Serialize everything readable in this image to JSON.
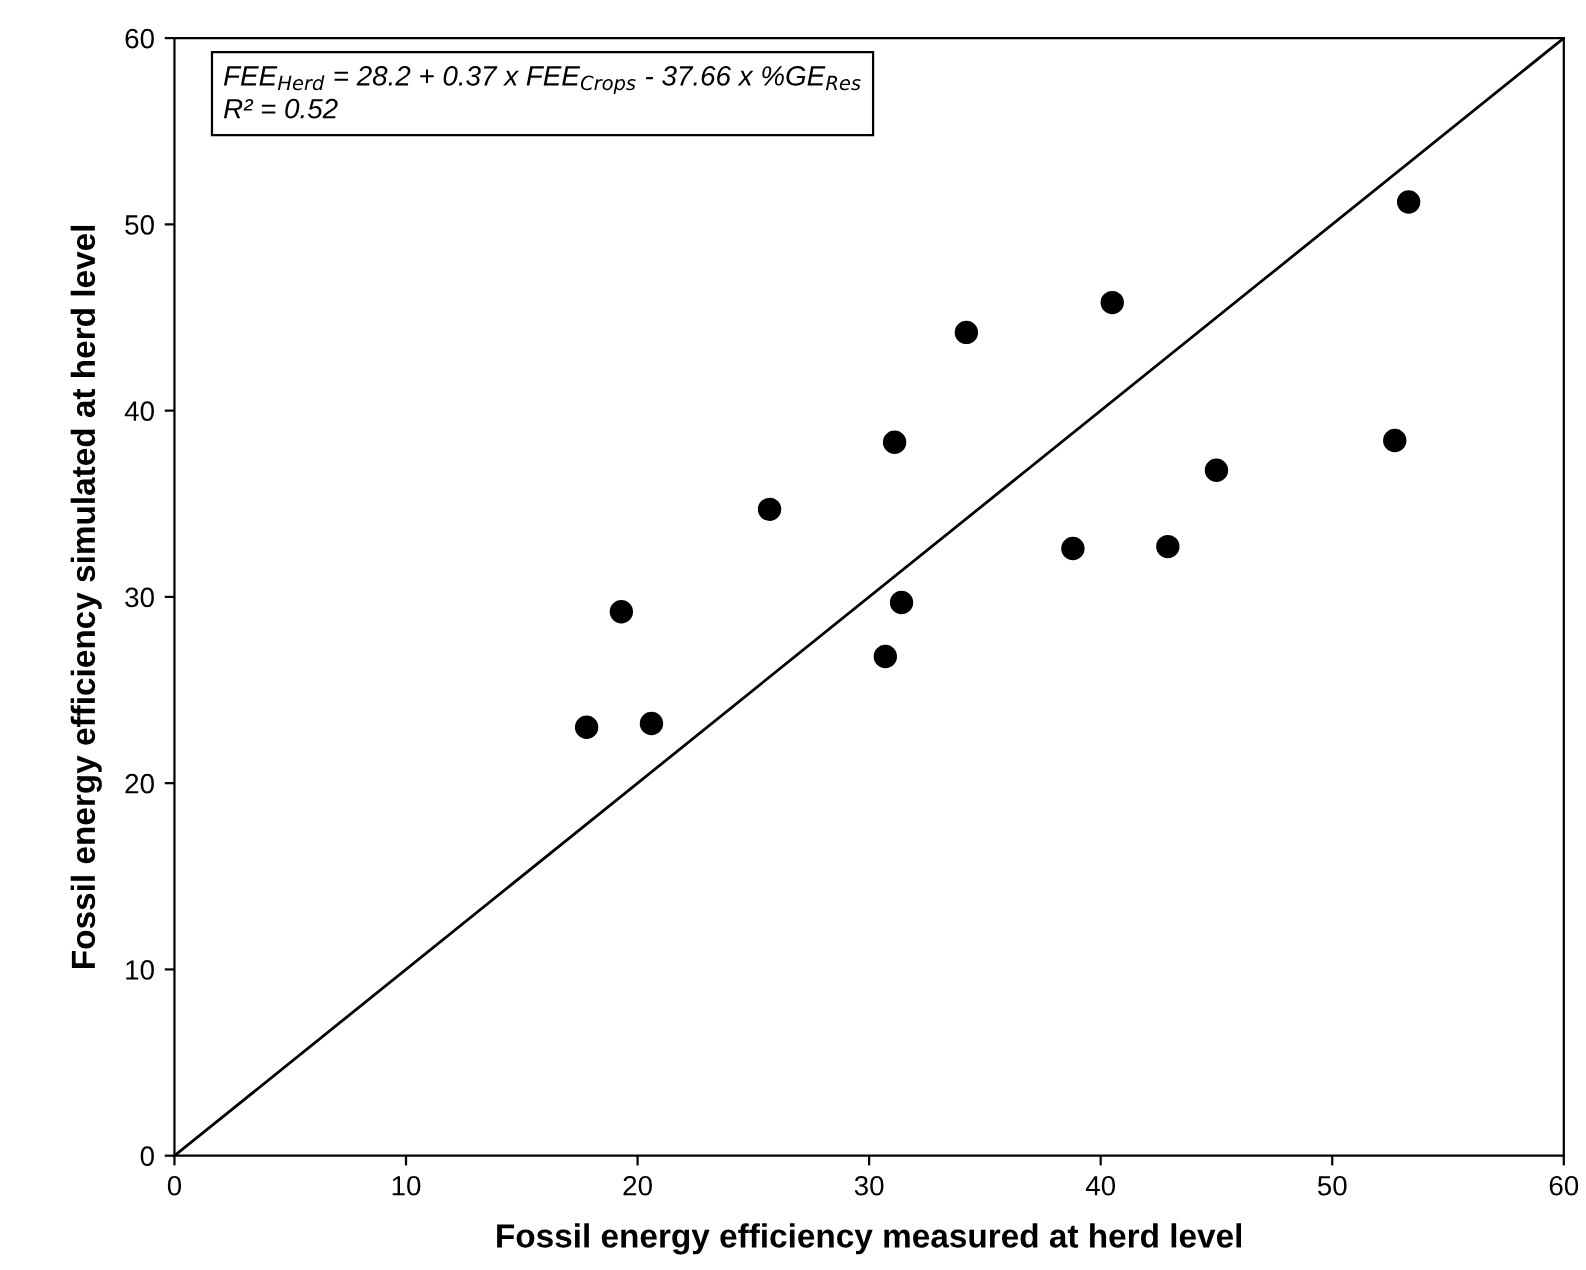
{
  "chart_data": {
    "type": "scatter",
    "xlabel": "Fossil energy efficiency measured at herd level",
    "ylabel": "Fossil energy efficiency simulated at herd level",
    "annotations": [
      "FEE$_{Herd}$ = 28.2 + 0.37 x FEE$_{Crops}$ - 37.66 x %GE$_{Res}$",
      "R² = 0.52"
    ],
    "series": [
      {
        "color": "#000000",
        "marker": "circle",
        "x": [
          17.8,
          19.3,
          20.6,
          25.7,
          30.7,
          31.1,
          31.4,
          34.2,
          38.8,
          40.5,
          42.9,
          45.0,
          52.7,
          53.3
        ],
        "values": [
          23.0,
          29.2,
          23.2,
          34.7,
          26.8,
          38.3,
          29.7,
          44.2,
          32.6,
          45.8,
          32.7,
          36.8,
          38.4,
          51.2
        ]
      },
      {
        "type": "line",
        "color": "#000000",
        "marker": "none",
        "x": [
          0,
          60
        ],
        "values": [
          0,
          60
        ]
      }
    ],
    "xlim": [
      0,
      60
    ],
    "ylim": [
      0,
      60
    ],
    "xticks": [
      0,
      10,
      20,
      30,
      40,
      50,
      60
    ],
    "yticks": [
      0,
      10,
      20,
      30,
      40,
      50,
      60
    ],
    "grid": false
  }
}
